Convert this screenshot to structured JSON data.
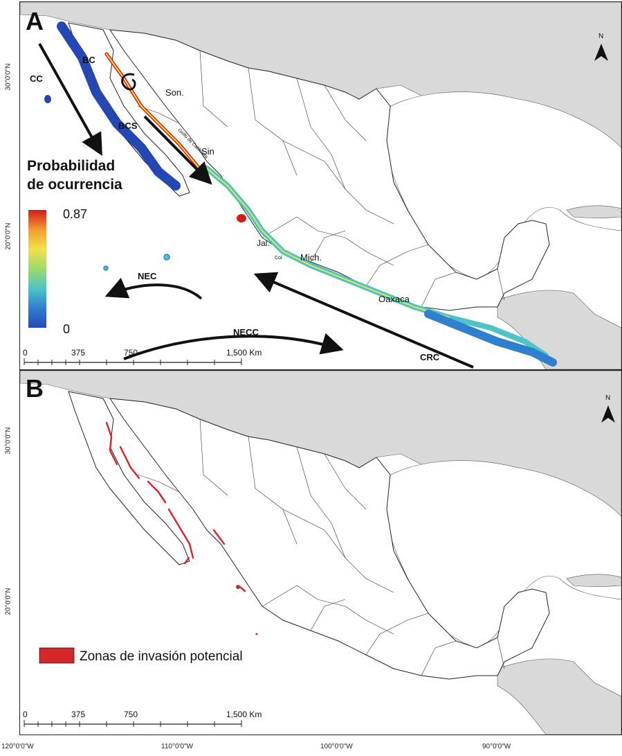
{
  "panels": {
    "a": {
      "letter": "A",
      "north": "N",
      "states": [
        "BC",
        "Son.",
        "BCS",
        "Sin",
        "Jal.",
        "Col.",
        "Mich.",
        "Oaxaca"
      ],
      "gulf_label": "Golfo de California",
      "currents": [
        "CC",
        "NEC",
        "NECC",
        "CRC"
      ],
      "legend": {
        "title_line1": "Probabilidad",
        "title_line2": "de ocurrencia",
        "max": "0.87",
        "min": "0",
        "colors": [
          "#d7191c",
          "#f29e2e",
          "#f4e04a",
          "#9dd96a",
          "#4cc4c8",
          "#2f7fd1",
          "#2547b4"
        ]
      },
      "scale": {
        "ticks": [
          "0",
          "375",
          "750",
          "1,500 Km"
        ]
      },
      "lat_labels": [
        "30°0'0\"N",
        "20°0'0\"N"
      ]
    },
    "b": {
      "letter": "B",
      "north": "N",
      "legend_label": "Zonas de invasión potencial",
      "legend_color": "#d62728",
      "scale": {
        "ticks": [
          "0",
          "375",
          "750",
          "1,500 Km"
        ]
      },
      "lat_labels": [
        "30°0'0\"N",
        "20°0'0\"N"
      ]
    }
  },
  "lon_labels": [
    "120°0'0\"W",
    "110°0'0\"W",
    "100°0'0\"W",
    "90°0'0\"W"
  ],
  "colors": {
    "land_us": "#d9d9d9",
    "mexico": "#ffffff",
    "ocean": "#ffffff",
    "border": "#222222"
  }
}
